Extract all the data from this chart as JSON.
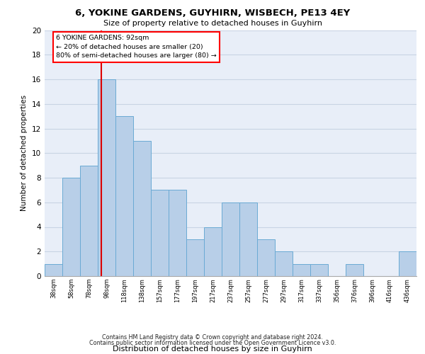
{
  "title_line1": "6, YOKINE GARDENS, GUYHIRN, WISBECH, PE13 4EY",
  "title_line2": "Size of property relative to detached houses in Guyhirn",
  "xlabel": "Distribution of detached houses by size in Guyhirn",
  "ylabel": "Number of detached properties",
  "categories": [
    "38sqm",
    "58sqm",
    "78sqm",
    "98sqm",
    "118sqm",
    "138sqm",
    "157sqm",
    "177sqm",
    "197sqm",
    "217sqm",
    "237sqm",
    "257sqm",
    "277sqm",
    "297sqm",
    "317sqm",
    "337sqm",
    "356sqm",
    "376sqm",
    "396sqm",
    "416sqm",
    "436sqm"
  ],
  "values": [
    1,
    8,
    9,
    16,
    13,
    11,
    7,
    7,
    3,
    4,
    6,
    6,
    3,
    2,
    1,
    1,
    0,
    1,
    0,
    0,
    2
  ],
  "bar_color": "#b8cfe8",
  "bar_edge_color": "#6aaad4",
  "vline_color": "#dd0000",
  "vline_x": 2.7,
  "annotation_line1": "6 YOKINE GARDENS: 92sqm",
  "annotation_line2": "← 20% of detached houses are smaller (20)",
  "annotation_line3": "80% of semi-detached houses are larger (80) →",
  "ylim_max": 20,
  "yticks": [
    0,
    2,
    4,
    6,
    8,
    10,
    12,
    14,
    16,
    18,
    20
  ],
  "grid_color": "#c8d4e4",
  "background_color": "#e8eef8",
  "footer_line1": "Contains HM Land Registry data © Crown copyright and database right 2024.",
  "footer_line2": "Contains public sector information licensed under the Open Government Licence v3.0."
}
